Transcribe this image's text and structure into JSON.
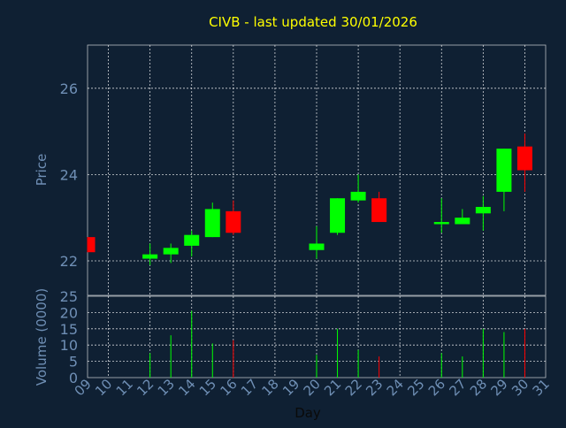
{
  "chart_data": {
    "type": "candlestick",
    "title": "CIVB - last updated 30/01/2026",
    "colors": {
      "background": "#0f2033",
      "title": "#ffff00",
      "axis_text": "#6f8fb5",
      "grid": "#ffffff",
      "up": "#00ff00",
      "down": "#ff0000"
    },
    "grid": true,
    "x_axis": {
      "label": "Day",
      "tick_labels": [
        "09",
        "10",
        "11",
        "12",
        "13",
        "14",
        "15",
        "16",
        "17",
        "18",
        "19",
        "20",
        "21",
        "22",
        "23",
        "24",
        "25",
        "26",
        "27",
        "28",
        "29",
        "30",
        "31"
      ]
    },
    "price_panel": {
      "ylabel": "Price",
      "yticks": [
        22,
        24,
        26
      ],
      "ylim": [
        21.2,
        27.0
      ]
    },
    "volume_panel": {
      "ylabel": "Volume (0000)",
      "yticks": [
        0,
        5,
        10,
        15,
        20,
        25
      ],
      "ylim": [
        0,
        25
      ]
    },
    "candles": [
      {
        "day": "09",
        "open": 22.55,
        "close": 22.2,
        "high": 22.55,
        "low": 22.2,
        "volume": 0
      },
      {
        "day": "12",
        "open": 22.05,
        "close": 22.15,
        "high": 22.4,
        "low": 21.9,
        "volume": 7.5
      },
      {
        "day": "13",
        "open": 22.15,
        "close": 22.3,
        "high": 22.4,
        "low": 21.95,
        "volume": 13
      },
      {
        "day": "14",
        "open": 22.35,
        "close": 22.6,
        "high": 22.7,
        "low": 22.1,
        "volume": 20.5
      },
      {
        "day": "15",
        "open": 22.55,
        "close": 23.2,
        "high": 23.35,
        "low": 22.55,
        "volume": 10.5
      },
      {
        "day": "16",
        "open": 23.15,
        "close": 22.65,
        "high": 23.4,
        "low": 22.6,
        "volume": 11.5
      },
      {
        "day": "20",
        "open": 22.25,
        "close": 22.4,
        "high": 22.8,
        "low": 22.05,
        "volume": 7
      },
      {
        "day": "21",
        "open": 22.65,
        "close": 23.45,
        "high": 23.45,
        "low": 22.6,
        "volume": 15
      },
      {
        "day": "22",
        "open": 23.4,
        "close": 23.6,
        "high": 24.0,
        "low": 23.35,
        "volume": 8.5
      },
      {
        "day": "23",
        "open": 23.45,
        "close": 22.9,
        "high": 23.6,
        "low": 22.9,
        "volume": 6.5
      },
      {
        "day": "26",
        "open": 22.85,
        "close": 22.9,
        "high": 23.45,
        "low": 22.65,
        "volume": 7.5
      },
      {
        "day": "27",
        "open": 22.85,
        "close": 23.0,
        "high": 23.2,
        "low": 22.85,
        "volume": 6.5
      },
      {
        "day": "28",
        "open": 23.1,
        "close": 23.25,
        "high": 23.5,
        "low": 22.7,
        "volume": 15
      },
      {
        "day": "29",
        "open": 23.6,
        "close": 24.6,
        "high": 24.6,
        "low": 23.15,
        "volume": 14
      },
      {
        "day": "30",
        "open": 24.65,
        "close": 24.1,
        "high": 24.95,
        "low": 23.6,
        "volume": 15
      }
    ]
  }
}
